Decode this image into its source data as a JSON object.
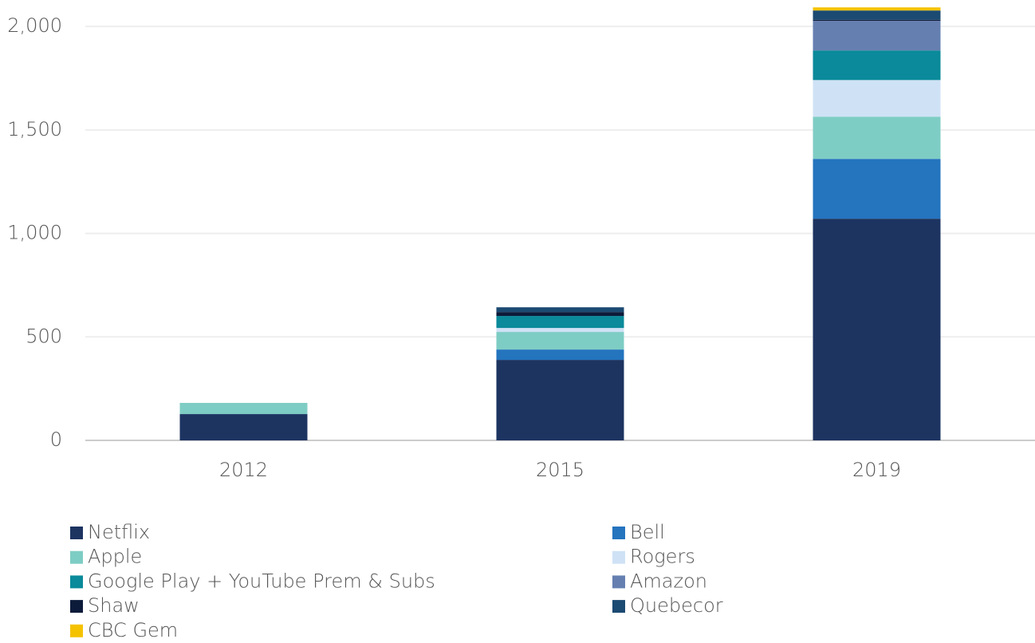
{
  "chart_data": {
    "type": "stacked_bar",
    "categories": [
      "2012",
      "2015",
      "2019"
    ],
    "series": [
      {
        "name": "Netflix",
        "color": "#1d3461",
        "values": [
          127,
          389,
          1071
        ]
      },
      {
        "name": "Bell",
        "color": "#2474be",
        "values": [
          0,
          50,
          289
        ]
      },
      {
        "name": "Apple",
        "color": "#7ecdc4",
        "values": [
          54,
          85,
          204
        ]
      },
      {
        "name": "Rogers",
        "color": "#cfe2f5",
        "values": [
          0,
          19,
          177
        ]
      },
      {
        "name": "Google Play + YouTube Prem & Subs",
        "color": "#0a8a9a",
        "values": [
          0,
          58,
          143
        ]
      },
      {
        "name": "Amazon",
        "color": "#657fb0",
        "values": [
          0,
          0,
          143
        ]
      },
      {
        "name": "Shaw",
        "color": "#0d1b3a",
        "values": [
          0,
          19,
          5
        ]
      },
      {
        "name": "Quebecor",
        "color": "#1b4a72",
        "values": [
          0,
          23,
          45
        ]
      },
      {
        "name": "CBC Gem",
        "color": "#f5c200",
        "values": [
          0,
          0,
          15
        ]
      }
    ],
    "ylim": [
      0,
      2120
    ],
    "yticks": [
      0,
      500,
      {
        "value": 1000,
        "label": "1,000"
      },
      {
        "value": 1500,
        "label": "1,500"
      },
      {
        "value": 2000,
        "label": "2,000"
      }
    ],
    "grid": true,
    "legend": "bottom"
  }
}
